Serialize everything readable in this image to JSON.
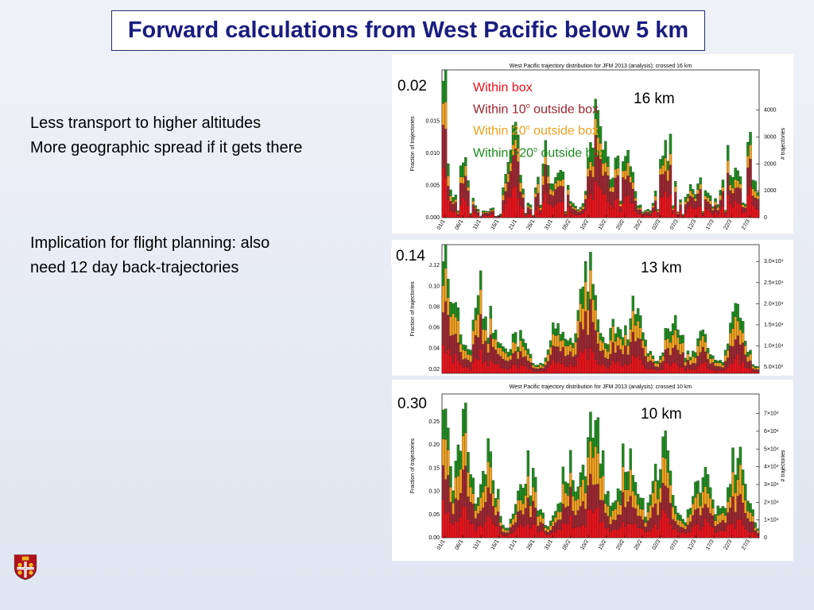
{
  "title": "Forward calculations from West Pacific below 5 km",
  "notes": {
    "line1": "Less transport to higher altitudes",
    "line2": "More geographic spread if it gets there",
    "line3": "Implication for flight planning: also",
    "line4": "need 12 day back-trajectories"
  },
  "legend": {
    "within": "Within box",
    "within10": "Within 10",
    "within20": "Within 20",
    "within20plus": "Within >20",
    "outside": "outside box",
    "degree": "o"
  },
  "colors": {
    "within": "#e8121a",
    "within10": "#9b2530",
    "within20": "#f0a020",
    "beyond": "#1e8a1e"
  },
  "dates": [
    "01/1",
    "06/1",
    "11/1",
    "16/1",
    "21/1",
    "26/1",
    "31/1",
    "05/2",
    "10/2",
    "15/2",
    "20/2",
    "25/2",
    "02/3",
    "07/3",
    "12/3",
    "17/3",
    "22/3",
    "27/3"
  ],
  "chart_data": [
    {
      "type": "bar",
      "title": "West Pacific trajectory distribution for JFM 2013 (analysis): crossed 16 km",
      "ylabel": "Fraction of trajectories",
      "y2label": "# trajectories",
      "ylim": [
        0,
        0.02
      ],
      "y_ticks": [
        "0.000",
        "0.005",
        "0.010",
        "0.015"
      ],
      "y2_ticks": [
        "0",
        "1000",
        "2000",
        "3000",
        "4000"
      ],
      "callout_value": "0.02",
      "altitude_label": "16 km",
      "stacked": true,
      "series_names": [
        "Within box",
        "Within 10° outside box",
        "Within 20° outside box",
        "Within >20° outside box"
      ]
    },
    {
      "type": "bar",
      "title": "",
      "ylabel": "Fraction of trajectories",
      "y2label": "",
      "ylim": [
        0.01,
        0.14
      ],
      "y_ticks": [
        "0.02",
        "0.04",
        "0.06",
        "0.08",
        "0.10",
        "0.12"
      ],
      "y2_ticks": [
        "5.0×10³",
        "1.0×10⁴",
        "1.5×10⁴",
        "2.0×10⁴",
        "2.5×10⁴",
        "3.0×10⁴"
      ],
      "callout_value": "0.14",
      "altitude_label": "13 km",
      "stacked": true
    },
    {
      "type": "bar",
      "title": "West Pacific trajectory distribution for JFM 2013 (analysis): crossed 10 km",
      "ylabel": "Fraction of trajectories",
      "y2label": "# trajectories",
      "ylim": [
        0,
        0.3
      ],
      "y_ticks": [
        "0.00",
        "0.05",
        "0.10",
        "0.15",
        "0.20",
        "0.25"
      ],
      "y2_ticks": [
        "0",
        "1×10⁴",
        "2×10⁴",
        "3×10⁴",
        "4×10⁴",
        "5×10⁴",
        "6×10⁴",
        "7×10⁴"
      ],
      "callout_value": "0.30",
      "altitude_label": "10 km",
      "stacked": true
    }
  ]
}
